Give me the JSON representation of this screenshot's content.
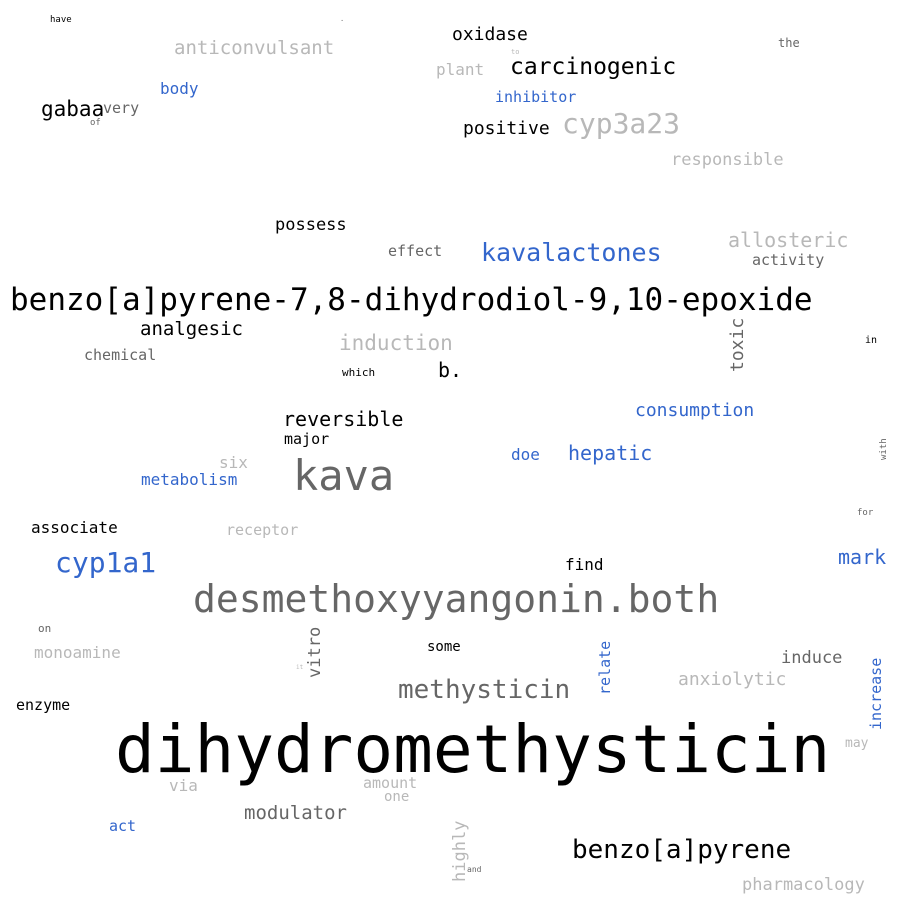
{
  "palette": {
    "black": "#000000",
    "dark_gray": "#666666",
    "light_gray": "#b8b8b8",
    "blue": "#3366cc"
  },
  "words": [
    {
      "text": "dihydromethysticin",
      "color": "black"
    },
    {
      "text": "benzo[a]pyrene-7,8-dihydrodiol-9,10-epoxide",
      "color": "black"
    },
    {
      "text": "desmethoxyyangonin.both",
      "color": "dark_gray"
    },
    {
      "text": "kava",
      "color": "dark_gray"
    },
    {
      "text": "methysticin",
      "color": "dark_gray"
    },
    {
      "text": "benzo[a]pyrene",
      "color": "black"
    },
    {
      "text": "cyp1a1",
      "color": "blue"
    },
    {
      "text": "kavalactones",
      "color": "blue"
    },
    {
      "text": "cyp3a23",
      "color": "light_gray"
    },
    {
      "text": "carcinogenic",
      "color": "black"
    },
    {
      "text": "induction",
      "color": "light_gray"
    },
    {
      "text": "reversible",
      "color": "black"
    },
    {
      "text": "allosteric",
      "color": "light_gray"
    },
    {
      "text": "anticonvulsant",
      "color": "light_gray"
    },
    {
      "text": "hepatic",
      "color": "blue"
    },
    {
      "text": "analgesic",
      "color": "black"
    },
    {
      "text": "gabaa",
      "color": "black"
    },
    {
      "text": "consumption",
      "color": "blue"
    },
    {
      "text": "modulator",
      "color": "dark_gray"
    },
    {
      "text": "anxiolytic",
      "color": "light_gray"
    },
    {
      "text": "mark",
      "color": "blue"
    },
    {
      "text": "toxic",
      "color": "dark_gray"
    },
    {
      "text": "oxidase",
      "color": "black"
    },
    {
      "text": "positive",
      "color": "black"
    },
    {
      "text": "responsible",
      "color": "light_gray"
    },
    {
      "text": "pharmacology",
      "color": "light_gray"
    },
    {
      "text": "metabolism",
      "color": "blue"
    },
    {
      "text": "possess",
      "color": "black"
    },
    {
      "text": "vitro",
      "color": "dark_gray"
    },
    {
      "text": "associate",
      "color": "black"
    },
    {
      "text": "induce",
      "color": "dark_gray"
    },
    {
      "text": "increase",
      "color": "blue"
    },
    {
      "text": "inhibitor",
      "color": "blue"
    },
    {
      "text": "b.",
      "color": "black"
    },
    {
      "text": "highly",
      "color": "light_gray"
    },
    {
      "text": "find",
      "color": "black"
    },
    {
      "text": "monoamine",
      "color": "light_gray"
    },
    {
      "text": "activity",
      "color": "dark_gray"
    },
    {
      "text": "body",
      "color": "blue"
    },
    {
      "text": "plant",
      "color": "light_gray"
    },
    {
      "text": "enzyme",
      "color": "black"
    },
    {
      "text": "relate",
      "color": "blue"
    },
    {
      "text": "effect",
      "color": "dark_gray"
    },
    {
      "text": "major",
      "color": "black"
    },
    {
      "text": "receptor",
      "color": "light_gray"
    },
    {
      "text": "chemical",
      "color": "dark_gray"
    },
    {
      "text": "very",
      "color": "dark_gray"
    },
    {
      "text": "six",
      "color": "light_gray"
    },
    {
      "text": "amount",
      "color": "light_gray"
    },
    {
      "text": "doe",
      "color": "blue"
    },
    {
      "text": "some",
      "color": "black"
    },
    {
      "text": "via",
      "color": "light_gray"
    },
    {
      "text": "act",
      "color": "blue"
    },
    {
      "text": "one",
      "color": "light_gray"
    },
    {
      "text": "may",
      "color": "light_gray"
    },
    {
      "text": "the",
      "color": "dark_gray"
    },
    {
      "text": "on",
      "color": "dark_gray"
    },
    {
      "text": "which",
      "color": "black"
    },
    {
      "text": "in",
      "color": "black"
    },
    {
      "text": "for",
      "color": "dark_gray"
    },
    {
      "text": "with",
      "color": "dark_gray"
    },
    {
      "text": "of",
      "color": "dark_gray"
    },
    {
      "text": "have",
      "color": "black"
    },
    {
      "text": "and",
      "color": "dark_gray"
    },
    {
      "text": "to",
      "color": "light_gray"
    },
    {
      "text": "it",
      "color": "light_gray"
    },
    {
      "text": ".",
      "color": "dark_gray"
    }
  ]
}
